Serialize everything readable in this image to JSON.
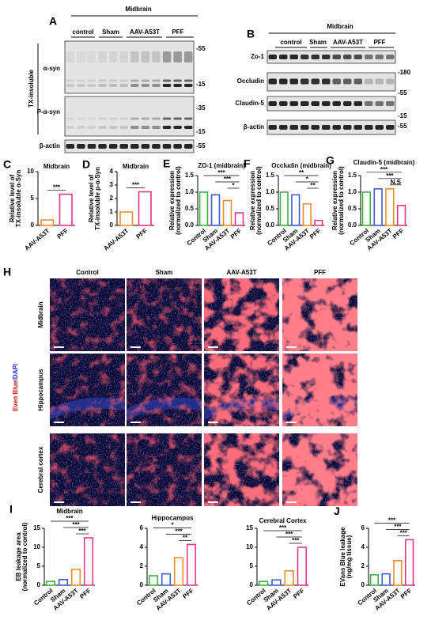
{
  "blot_a": {
    "label": "A",
    "region": "Midbrain",
    "groups": [
      "control",
      "Sham",
      "AAV-A53T",
      "PFF"
    ],
    "side_label": "TX-insoluble",
    "rows": [
      "α-syn",
      "P-α-syn",
      "β-actin"
    ],
    "markers": [
      "-55",
      "-15",
      "-35",
      "-15",
      "-55"
    ]
  },
  "blot_b": {
    "label": "B",
    "region": "Midbrain",
    "groups": [
      "control",
      "Sham",
      "AAV-A53T",
      "PFF"
    ],
    "rows": [
      "Zo-1",
      "Occludin",
      "Claudin-5",
      "β-actin"
    ],
    "markers": [
      "-180",
      "-55",
      "-15",
      "-55"
    ]
  },
  "chart_data": [
    {
      "type": "bar",
      "panel": "C",
      "title": "Midbrain",
      "ylabel": [
        "Relative level of",
        "TX-insoluble α-Syn"
      ],
      "categories": [
        "AAV-A53T",
        "PFF"
      ],
      "values": [
        1,
        5.8
      ],
      "colors": [
        "#f08c28",
        "#e8338a"
      ],
      "ylim": [
        0,
        10
      ],
      "yticks": [
        0,
        5,
        10
      ],
      "annotations": [
        "***"
      ]
    },
    {
      "type": "bar",
      "panel": "D",
      "title": "Midbrain",
      "ylabel": [
        "Relative level of",
        "TX-insoluble p-α-Syn"
      ],
      "categories": [
        "AAV-A53T",
        "PFF"
      ],
      "values": [
        1,
        2.5
      ],
      "colors": [
        "#f08c28",
        "#e8338a"
      ],
      "ylim": [
        0,
        4
      ],
      "yticks": [
        0,
        1,
        2,
        3,
        4
      ],
      "annotations": [
        "***"
      ]
    },
    {
      "type": "bar",
      "panel": "E",
      "title": "ZO-1 (midbrain)",
      "ylabel": [
        "Relative expression",
        "(normalized to control)"
      ],
      "categories": [
        "Control",
        "Sham",
        "AAV-A53T",
        "PFF"
      ],
      "values": [
        1,
        0.92,
        0.75,
        0.38
      ],
      "colors": [
        "#3cb043",
        "#3b5bdb",
        "#f08c28",
        "#e8338a"
      ],
      "ylim": [
        0,
        1.5
      ],
      "yticks": [
        {
          "value": 0,
          "label": "0.0"
        },
        0.5,
        {
          "value": 1,
          "label": "1.0"
        },
        1.5
      ],
      "annotations": [
        "*",
        "***",
        "***"
      ]
    },
    {
      "type": "bar",
      "panel": "F",
      "title": "Occludin (midbrain)",
      "ylabel": [
        "Relative expression",
        "(normalized to control)"
      ],
      "categories": [
        "Control",
        "Sham",
        "AAV-A53T",
        "PFF"
      ],
      "values": [
        1,
        0.92,
        0.65,
        0.15
      ],
      "colors": [
        "#3cb043",
        "#3b5bdb",
        "#f08c28",
        "#e8338a"
      ],
      "ylim": [
        0,
        1.5
      ],
      "yticks": [
        {
          "value": 0,
          "label": "0.0"
        },
        0.5,
        {
          "value": 1,
          "label": "1.0"
        },
        1.5
      ],
      "annotations": [
        "**",
        "*",
        "**"
      ]
    },
    {
      "type": "bar",
      "panel": "G",
      "title": "Claudin-5 (midbrain)",
      "ylabel": [
        "Relative expression",
        "(normalized to control)"
      ],
      "categories": [
        "Control",
        "Sham",
        "AAV-A53T",
        "PFF"
      ],
      "values": [
        1,
        1.1,
        1.1,
        0.6
      ],
      "colors": [
        "#3cb043",
        "#3b5bdb",
        "#f08c28",
        "#e8338a"
      ],
      "ylim": [
        0,
        1.5
      ],
      "yticks": [
        {
          "value": 0,
          "label": "0.0"
        },
        0.5,
        {
          "value": 1,
          "label": "1.0"
        },
        1.5
      ],
      "annotations": [
        "N.S",
        "***",
        "***"
      ]
    },
    {
      "type": "bar",
      "panel": "I",
      "title": "Midbrain",
      "ylabel": [
        "EB leakage area",
        "(normalized to control)"
      ],
      "categories": [
        "Control",
        "Sham",
        "AAV-A53T",
        "PFF"
      ],
      "values": [
        1,
        1.5,
        4.2,
        12.5
      ],
      "colors": [
        "#3cb043",
        "#3b5bdb",
        "#f08c28",
        "#e8338a"
      ],
      "ylim": [
        0,
        15
      ],
      "yticks": [
        0,
        5,
        10,
        15
      ],
      "annotations": [
        "***",
        "***",
        "***"
      ]
    },
    {
      "type": "bar",
      "title": "Hippocampus",
      "categories": [
        "Control",
        "Sham",
        "AAV-A53T",
        "PFF"
      ],
      "values": [
        1,
        1.2,
        2.9,
        4.3
      ],
      "colors": [
        "#3cb043",
        "#3b5bdb",
        "#f08c28",
        "#e8338a"
      ],
      "ylim": [
        0,
        6
      ],
      "yticks": [
        0,
        2,
        4,
        6
      ],
      "annotations": [
        "**",
        "***",
        "*"
      ]
    },
    {
      "type": "bar",
      "title": "Cerebral Cortex",
      "categories": [
        "Control",
        "Sham",
        "AAV-A53T",
        "PFF"
      ],
      "values": [
        1,
        1.4,
        3.8,
        10
      ],
      "colors": [
        "#3cb043",
        "#3b5bdb",
        "#f08c28",
        "#e8338a"
      ],
      "ylim": [
        0,
        15
      ],
      "yticks": [
        0,
        5,
        10,
        15
      ],
      "annotations": [
        "***",
        "***",
        "***"
      ]
    },
    {
      "type": "bar",
      "panel": "J",
      "ylabel": [
        "EVans Blue leakage",
        "(ng/mg tissue)"
      ],
      "categories": [
        "Control",
        "Sham",
        "AAV-A53T",
        "PFF"
      ],
      "values": [
        1.1,
        1.2,
        2.6,
        4.8
      ],
      "colors": [
        "#3cb043",
        "#3b5bdb",
        "#f08c28",
        "#e8338a"
      ],
      "ylim": [
        0,
        6
      ],
      "yticks": [
        0,
        2,
        4,
        6
      ],
      "annotations": [
        "***",
        "***",
        "***"
      ]
    }
  ],
  "panel_h": {
    "label": "H",
    "stain": [
      "Even Blue",
      "/DAPI"
    ],
    "columns": [
      "Control",
      "Sham",
      "AAV-A53T",
      "PFF"
    ],
    "rows": [
      "Midbrain",
      "Hippocampus",
      "Cerebral cortex"
    ]
  }
}
